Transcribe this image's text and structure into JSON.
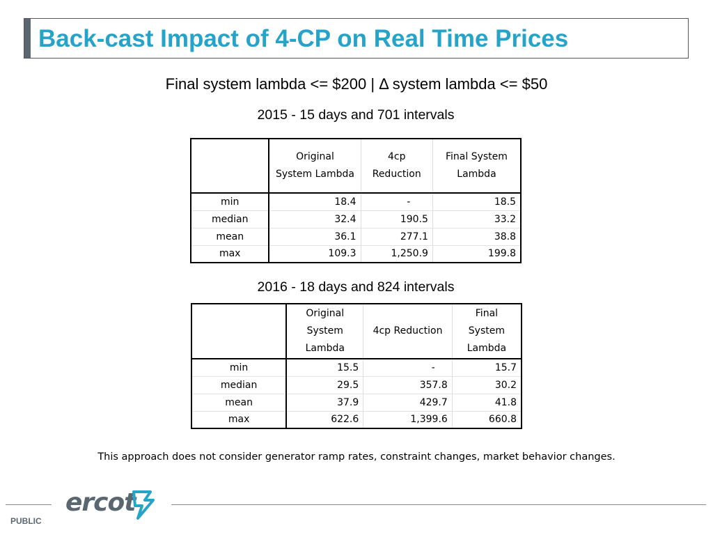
{
  "title": "Back-cast Impact of 4-CP on Real Time Prices",
  "subtitle": "Final system lambda <= $200 | Δ system lambda <= $50",
  "tables": [
    {
      "label": "2015 - 15 days and 701 intervals",
      "headers": [
        "",
        "Original\nSystem Lambda",
        "4cp\nReduction",
        "Final System\nLambda"
      ],
      "rows": [
        [
          "min",
          "18.4",
          "-",
          "18.5"
        ],
        [
          "median",
          "32.4",
          "190.5",
          "33.2"
        ],
        [
          "mean",
          "36.1",
          "277.1",
          "38.8"
        ],
        [
          "max",
          "109.3",
          "1,250.9",
          "199.8"
        ]
      ]
    },
    {
      "label": "2016 - 18 days and 824 intervals",
      "headers": [
        "",
        "Original\nSystem\nLambda",
        "4cp Reduction",
        "Final\nSystem\nLambda"
      ],
      "rows": [
        [
          "min",
          "15.5",
          "-",
          "15.7"
        ],
        [
          "median",
          "29.5",
          "357.8",
          "30.2"
        ],
        [
          "mean",
          "37.9",
          "429.7",
          "41.8"
        ],
        [
          "max",
          "622.6",
          "1,399.6",
          "660.8"
        ]
      ]
    }
  ],
  "note": "This approach does not consider generator ramp rates, constraint changes, market behavior changes.",
  "footer": {
    "logo_text": "ercot",
    "classification": "PUBLIC"
  },
  "colors": {
    "title": "#26a3c9",
    "logo": "#5b6770",
    "logo_mark": "#26a3c9"
  }
}
